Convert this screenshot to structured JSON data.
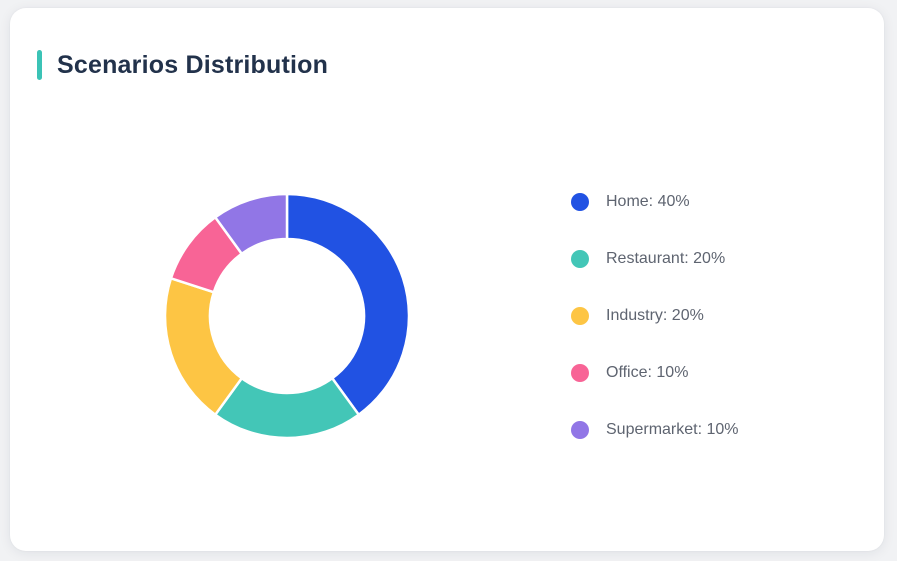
{
  "card": {
    "title": "Scenarios Distribution",
    "accent_color": "#3BC3B6"
  },
  "chart_data": {
    "type": "pie",
    "variant": "donut",
    "title": "Scenarios Distribution",
    "categories": [
      "Home",
      "Restaurant",
      "Industry",
      "Office",
      "Supermarket"
    ],
    "values": [
      40,
      20,
      20,
      10,
      10
    ],
    "unit": "%",
    "colors": [
      "#2152E3",
      "#43C6B7",
      "#FDC544",
      "#F86496",
      "#9176E6"
    ],
    "legend_labels": [
      "Home: 40%",
      "Restaurant: 20%",
      "Industry: 20%",
      "Office: 10%",
      "Supermarket: 10%"
    ],
    "legend_position": "right",
    "start_angle_deg": 0,
    "direction": "clockwise",
    "inner_radius_ratio": 0.63,
    "segment_border_color": "#FFFFFF"
  }
}
